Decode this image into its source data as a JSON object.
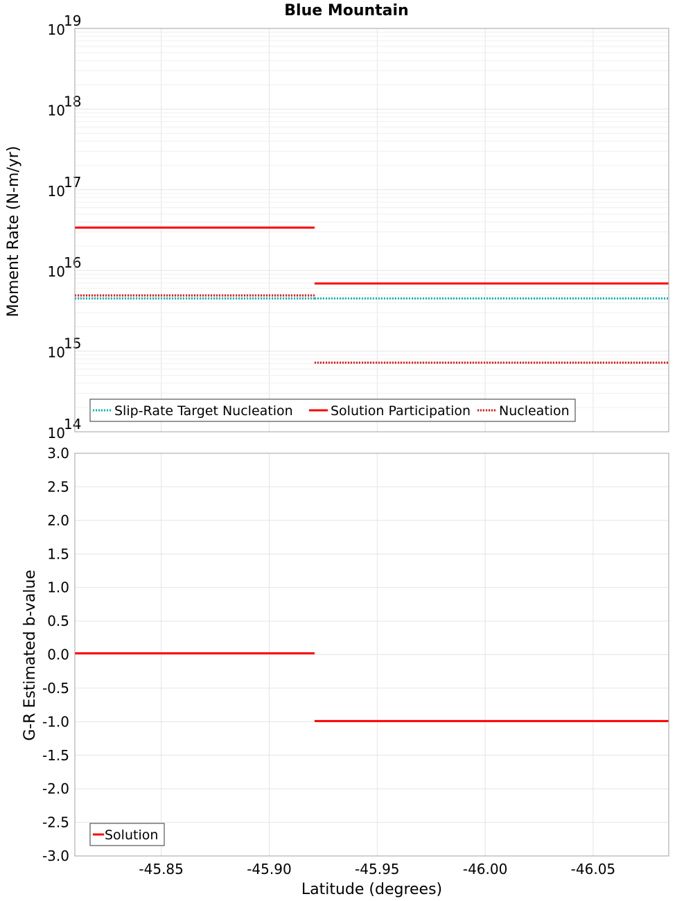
{
  "chart_data": [
    {
      "type": "line",
      "title": "Blue Mountain",
      "ylabel": "Moment Rate (N-m/yr)",
      "xlabel": "",
      "yscale": "log",
      "ylim_exp": [
        14,
        19
      ],
      "y_ticks": [
        {
          "base": "10",
          "exp": "14"
        },
        {
          "base": "10",
          "exp": "15"
        },
        {
          "base": "10",
          "exp": "16"
        },
        {
          "base": "10",
          "exp": "17"
        },
        {
          "base": "10",
          "exp": "18"
        },
        {
          "base": "10",
          "exp": "19"
        }
      ],
      "xlim": [
        -45.81,
        -46.085
      ],
      "grid": true,
      "legend_position": "bottom-left",
      "legend": [
        "Slip-Rate Target Nucleation",
        "Solution Participation",
        "Nucleation"
      ],
      "series": [
        {
          "name": "Slip-Rate Target Nucleation",
          "color": "#00b0b0",
          "style": "dotted",
          "segments": [
            {
              "x": [
                -45.81,
                -45.921
              ],
              "y": 4500000000000000.0
            },
            {
              "x": [
                -45.921,
                -46.085
              ],
              "y": 4500000000000000.0
            }
          ]
        },
        {
          "name": "Solution Participation",
          "color": "#ff0000",
          "style": "solid",
          "segments": [
            {
              "x": [
                -45.81,
                -45.921
              ],
              "y": 3.4e+16
            },
            {
              "x": [
                -45.921,
                -46.085
              ],
              "y": 6900000000000000.0
            }
          ]
        },
        {
          "name": "Nucleation",
          "color": "#ff0000",
          "style": "dotted",
          "segments": [
            {
              "x": [
                -45.81,
                -45.921
              ],
              "y": 4900000000000000.0
            },
            {
              "x": [
                -45.921,
                -46.085
              ],
              "y": 720000000000000.0
            }
          ]
        }
      ]
    },
    {
      "type": "line",
      "ylabel": "G-R Estimated b-value",
      "xlabel": "Latitude (degrees)",
      "ylim": [
        -3.0,
        3.0
      ],
      "y_ticks": [
        "-3.0",
        "-2.5",
        "-2.0",
        "-1.5",
        "-1.0",
        "-0.5",
        "0.0",
        "0.5",
        "1.0",
        "1.5",
        "2.0",
        "2.5",
        "3.0"
      ],
      "xlim": [
        -45.81,
        -46.085
      ],
      "x_ticks": [
        "-45.85",
        "-45.90",
        "-45.95",
        "-46.00",
        "-46.05"
      ],
      "grid": true,
      "legend_position": "bottom-left",
      "legend": [
        "Solution"
      ],
      "series": [
        {
          "name": "Solution",
          "color": "#ff0000",
          "style": "solid",
          "segments": [
            {
              "x": [
                -45.81,
                -45.921
              ],
              "y": 0.02
            },
            {
              "x": [
                -45.921,
                -46.085
              ],
              "y": -0.99
            }
          ]
        }
      ]
    }
  ]
}
